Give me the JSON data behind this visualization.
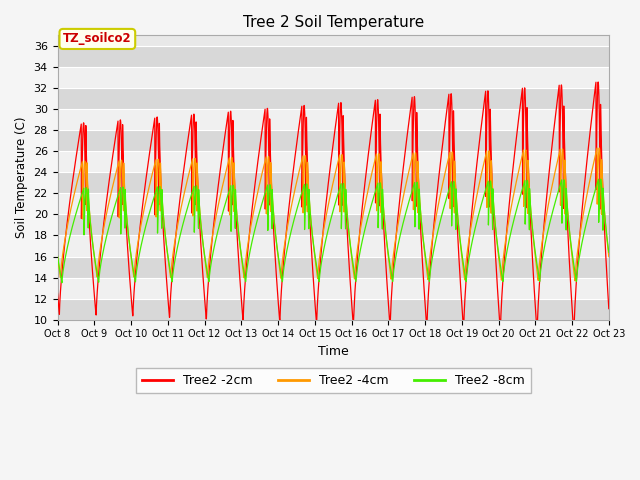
{
  "title": "Tree 2 Soil Temperature",
  "xlabel": "Time",
  "ylabel": "Soil Temperature (C)",
  "ylim": [
    10,
    37
  ],
  "yticks": [
    10,
    12,
    14,
    16,
    18,
    20,
    22,
    24,
    26,
    28,
    30,
    32,
    34,
    36
  ],
  "annotation_text": "TZ_soilco2",
  "annotation_color": "#cc0000",
  "annotation_box_color": "#ffffee",
  "annotation_box_edge": "#cccc00",
  "line_colors": {
    "2cm": "#ff0000",
    "4cm": "#ff9900",
    "8cm": "#44ee00"
  },
  "legend_labels": [
    "Tree2 -2cm",
    "Tree2 -4cm",
    "Tree2 -8cm"
  ],
  "legend_colors": [
    "#ff0000",
    "#ff9900",
    "#44ee00"
  ],
  "x_tick_labels": [
    "Oct 8",
    "Oct 9",
    "Oct 10",
    "Oct 11",
    "Oct 12",
    "Oct 13",
    "Oct 14",
    "Oct 15",
    "Oct 16",
    "Oct 17",
    "Oct 18",
    "Oct 19",
    "Oct 20",
    "Oct 21",
    "Oct 22",
    "Oct 23"
  ],
  "num_days": 15,
  "background_color": "#e8e8e8",
  "grid_color": "#ffffff",
  "title_fontsize": 11,
  "figsize": [
    6.4,
    4.8
  ],
  "dpi": 100
}
